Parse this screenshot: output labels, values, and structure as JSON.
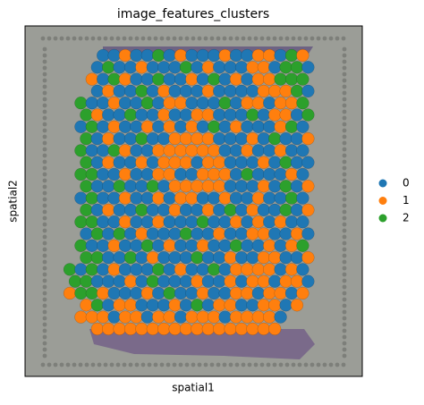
{
  "chart_data": {
    "type": "spatial",
    "title": "image_features_clusters",
    "xlabel": "spatial1",
    "ylabel": "spatial2",
    "categories": [
      "0",
      "1",
      "2"
    ],
    "colors": [
      "#1f77b4",
      "#ff7f0e",
      "#2ca02c"
    ],
    "legend": "right",
    "spots": [
      [
        null,
        null,
        null,
        0,
        0,
        1,
        0,
        0,
        2,
        0,
        1,
        0,
        0,
        0,
        1,
        0,
        0,
        1,
        1,
        0,
        2,
        1
      ],
      [
        null,
        null,
        0,
        2,
        0,
        0,
        1,
        0,
        0,
        0,
        2,
        0,
        1,
        0,
        0,
        0,
        1,
        1,
        0,
        2,
        2,
        0
      ],
      [
        null,
        null,
        1,
        0,
        2,
        1,
        0,
        0,
        2,
        0,
        0,
        1,
        0,
        2,
        0,
        1,
        0,
        1,
        1,
        2,
        2,
        2
      ],
      [
        null,
        null,
        0,
        1,
        0,
        0,
        2,
        0,
        1,
        0,
        0,
        0,
        1,
        0,
        0,
        0,
        0,
        1,
        1,
        1,
        2,
        0
      ],
      [
        null,
        2,
        0,
        0,
        1,
        0,
        0,
        2,
        0,
        1,
        1,
        0,
        0,
        0,
        2,
        0,
        1,
        1,
        0,
        1,
        1,
        2
      ],
      [
        null,
        2,
        1,
        0,
        0,
        2,
        0,
        0,
        1,
        0,
        0,
        1,
        1,
        0,
        0,
        0,
        2,
        0,
        1,
        1,
        0,
        2
      ],
      [
        null,
        0,
        2,
        0,
        1,
        0,
        0,
        1,
        0,
        1,
        0,
        1,
        0,
        2,
        0,
        1,
        0,
        0,
        0,
        1,
        2,
        0
      ],
      [
        null,
        2,
        0,
        1,
        0,
        0,
        2,
        0,
        0,
        1,
        1,
        1,
        1,
        0,
        0,
        0,
        1,
        0,
        2,
        0,
        0,
        1
      ],
      [
        null,
        2,
        0,
        0,
        2,
        1,
        0,
        0,
        1,
        1,
        1,
        1,
        1,
        1,
        0,
        0,
        1,
        0,
        0,
        1,
        0,
        0
      ],
      [
        null,
        2,
        0,
        1,
        0,
        0,
        1,
        0,
        1,
        1,
        1,
        0,
        1,
        1,
        0,
        0,
        0,
        1,
        0,
        2,
        0,
        0
      ],
      [
        null,
        2,
        2,
        0,
        0,
        1,
        0,
        0,
        1,
        1,
        0,
        0,
        1,
        1,
        1,
        0,
        2,
        0,
        0,
        0,
        1,
        0
      ],
      [
        null,
        2,
        0,
        0,
        2,
        0,
        0,
        2,
        0,
        1,
        1,
        1,
        1,
        1,
        0,
        0,
        0,
        1,
        0,
        2,
        0,
        1
      ],
      [
        null,
        0,
        2,
        0,
        0,
        1,
        0,
        0,
        1,
        0,
        1,
        1,
        0,
        0,
        1,
        0,
        0,
        1,
        0,
        0,
        2,
        0
      ],
      [
        null,
        2,
        0,
        1,
        0,
        0,
        2,
        0,
        0,
        1,
        0,
        0,
        1,
        0,
        2,
        0,
        1,
        0,
        0,
        2,
        0,
        1
      ],
      [
        null,
        2,
        2,
        0,
        0,
        1,
        0,
        0,
        1,
        0,
        0,
        0,
        2,
        0,
        0,
        1,
        0,
        1,
        0,
        1,
        0,
        0
      ],
      [
        null,
        0,
        2,
        0,
        2,
        0,
        1,
        0,
        0,
        0,
        2,
        0,
        0,
        1,
        0,
        0,
        1,
        1,
        0,
        0,
        1,
        0
      ],
      [
        null,
        2,
        0,
        0,
        1,
        0,
        0,
        2,
        0,
        1,
        0,
        0,
        1,
        0,
        0,
        2,
        0,
        0,
        1,
        0,
        1,
        2
      ],
      [
        null,
        2,
        2,
        0,
        0,
        2,
        0,
        1,
        0,
        0,
        0,
        2,
        0,
        0,
        1,
        0,
        0,
        1,
        1,
        0,
        0,
        1
      ],
      [
        2,
        0,
        2,
        0,
        1,
        0,
        0,
        0,
        2,
        0,
        1,
        0,
        0,
        2,
        0,
        1,
        1,
        1,
        1,
        0,
        1,
        0
      ],
      [
        2,
        2,
        0,
        0,
        0,
        1,
        0,
        2,
        0,
        0,
        0,
        1,
        0,
        0,
        1,
        0,
        1,
        1,
        0,
        1,
        1,
        0
      ],
      [
        1,
        2,
        2,
        1,
        0,
        0,
        0,
        1,
        0,
        2,
        0,
        0,
        1,
        0,
        0,
        1,
        1,
        0,
        1,
        1,
        0,
        1
      ],
      [
        null,
        1,
        2,
        0,
        1,
        1,
        0,
        0,
        0,
        1,
        0,
        2,
        0,
        1,
        1,
        0,
        0,
        1,
        1,
        0,
        1,
        null
      ],
      [
        null,
        1,
        1,
        1,
        0,
        1,
        1,
        0,
        1,
        1,
        0,
        1,
        1,
        1,
        0,
        1,
        1,
        1,
        1,
        0,
        null,
        null
      ],
      [
        null,
        null,
        1,
        1,
        1,
        1,
        1,
        1,
        1,
        1,
        1,
        1,
        1,
        1,
        1,
        1,
        1,
        1,
        1,
        null,
        null,
        null
      ]
    ]
  }
}
